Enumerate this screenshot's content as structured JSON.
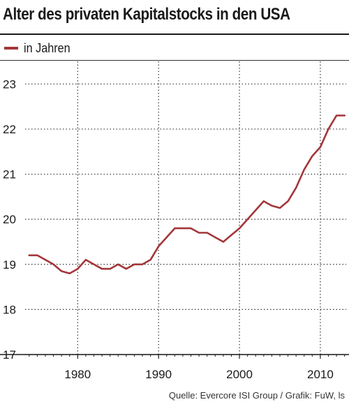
{
  "header": {
    "title": "Alter des privaten Kapitalstocks in den USA"
  },
  "legend": {
    "label": "in Jahren"
  },
  "footer": {
    "source": "Quelle: Evercore ISI Group / Grafik: FuW, ls"
  },
  "colors": {
    "line": "#a3363b",
    "axis": "#1a1a1a",
    "grid": "#333333"
  },
  "chart_data": {
    "type": "line",
    "title": "Alter des privaten Kapitalstocks in den USA",
    "xlabel": "",
    "ylabel": "",
    "xlim": [
      1973.5,
      2013.2
    ],
    "ylim": [
      17,
      23.5
    ],
    "xticks": [
      1980,
      1990,
      2000,
      2010
    ],
    "yticks": [
      17,
      18,
      19,
      20,
      21,
      22,
      23
    ],
    "grid": {
      "x": "dotted",
      "y": "dotted"
    },
    "legend_position": "top-left",
    "series": [
      {
        "name": "in Jahren",
        "x": [
          1974,
          1975,
          1976,
          1977,
          1978,
          1979,
          1980,
          1981,
          1982,
          1983,
          1984,
          1985,
          1986,
          1987,
          1988,
          1989,
          1990,
          1991,
          1992,
          1993,
          1994,
          1995,
          1996,
          1997,
          1998,
          1999,
          2000,
          2001,
          2002,
          2003,
          2004,
          2005,
          2006,
          2007,
          2008,
          2009,
          2010,
          2011,
          2012,
          2013
        ],
        "y": [
          19.2,
          19.2,
          19.1,
          19.0,
          18.85,
          18.8,
          18.9,
          19.1,
          19.0,
          18.9,
          18.9,
          19.0,
          18.9,
          19.0,
          19.0,
          19.1,
          19.4,
          19.6,
          19.8,
          19.8,
          19.8,
          19.7,
          19.7,
          19.6,
          19.5,
          19.65,
          19.8,
          20.0,
          20.2,
          20.4,
          20.3,
          20.25,
          20.4,
          20.7,
          21.1,
          21.4,
          21.6,
          22.0,
          22.3,
          22.3
        ]
      }
    ]
  }
}
